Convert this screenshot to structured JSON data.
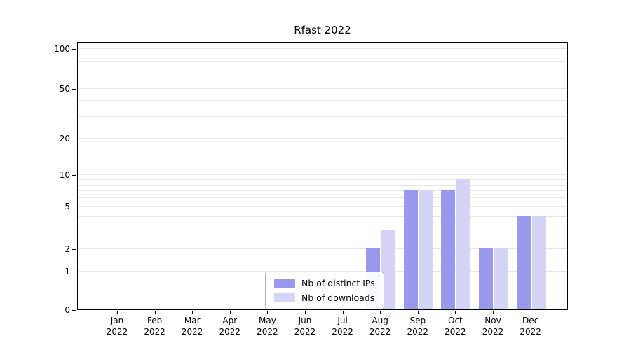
{
  "chart_data": {
    "type": "bar",
    "title": "Rfast 2022",
    "categories": [
      "Jan",
      "Feb",
      "Mar",
      "Apr",
      "May",
      "Jun",
      "Jul",
      "Aug",
      "Sep",
      "Oct",
      "Nov",
      "Dec"
    ],
    "x_year": "2022",
    "series": [
      {
        "name": "Nb of distinct IPs",
        "color": "#9999ee",
        "values": [
          0,
          0,
          0,
          0,
          0,
          0,
          0,
          2,
          7,
          7,
          2,
          4
        ]
      },
      {
        "name": "Nb of downloads",
        "color": "#d4d4f7",
        "values": [
          0,
          0,
          0,
          0,
          0,
          0,
          0,
          3,
          7,
          9,
          2,
          4
        ]
      }
    ],
    "y_ticks": [
      0,
      1,
      2,
      5,
      10,
      20,
      50,
      100
    ],
    "y_minor_gridlines": [
      1,
      2,
      3,
      4,
      5,
      6,
      7,
      8,
      9,
      10,
      20,
      30,
      40,
      50,
      60,
      70,
      80,
      90,
      100
    ],
    "ylim": [
      0,
      100
    ],
    "scale": "log",
    "grid": true,
    "legend_position": "bottom-center"
  }
}
